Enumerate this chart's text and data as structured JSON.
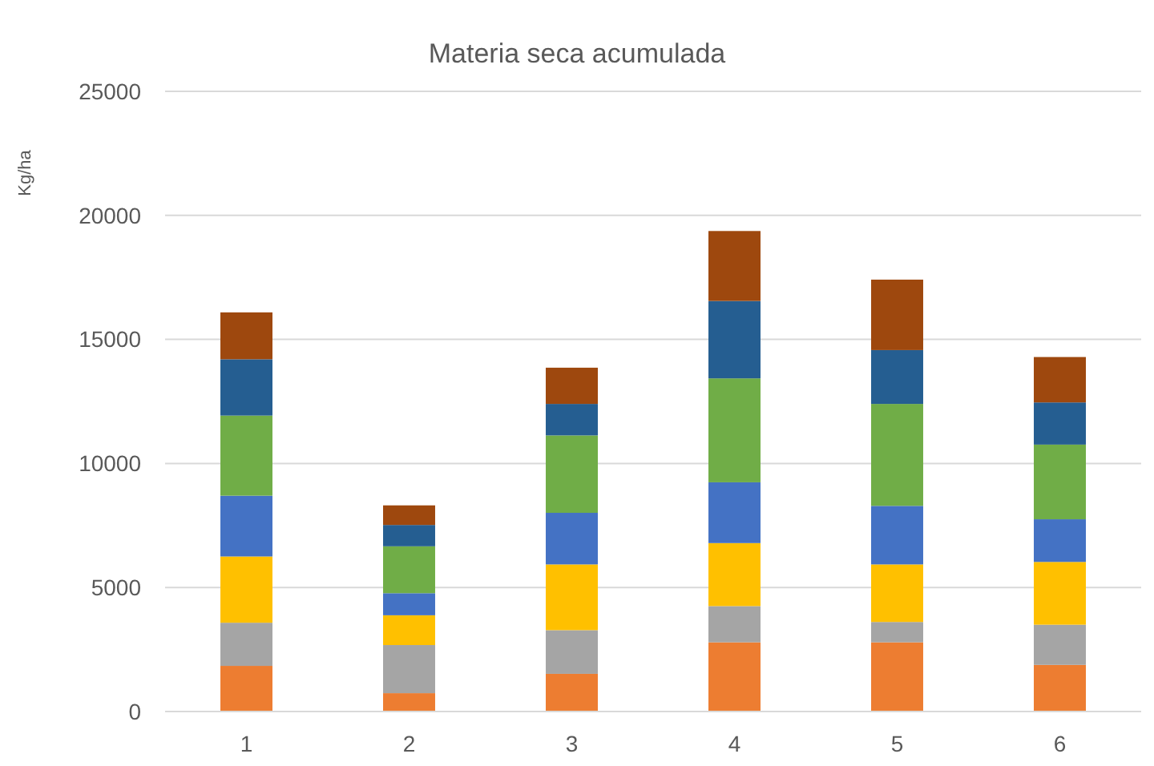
{
  "chart_data": {
    "type": "bar",
    "title": "Materia seca acumulada",
    "ylabel": "Kg/ha",
    "stacked": true,
    "categories": [
      "1",
      "2",
      "3",
      "4",
      "5",
      "6"
    ],
    "series": [
      {
        "color": "#ed7d31",
        "values": [
          1840,
          740,
          1520,
          2790,
          2790,
          1880
        ]
      },
      {
        "color": "#a5a5a5",
        "values": [
          1740,
          1940,
          1760,
          1460,
          820,
          1620
        ]
      },
      {
        "color": "#ffc000",
        "values": [
          2670,
          1200,
          2650,
          2540,
          2320,
          2530
        ]
      },
      {
        "color": "#4472c4",
        "values": [
          2450,
          890,
          2080,
          2450,
          2360,
          1720
        ]
      },
      {
        "color": "#70ad47",
        "values": [
          3230,
          1890,
          3120,
          4190,
          4110,
          3010
        ]
      },
      {
        "color": "#255e91",
        "values": [
          2270,
          860,
          1270,
          3120,
          2170,
          1700
        ]
      },
      {
        "color": "#9e480e",
        "values": [
          1890,
          790,
          1460,
          2820,
          2840,
          1830
        ]
      }
    ],
    "ylim": [
      0,
      25000
    ],
    "yticks": [
      0,
      5000,
      10000,
      15000,
      20000,
      25000
    ],
    "grid": "y"
  }
}
